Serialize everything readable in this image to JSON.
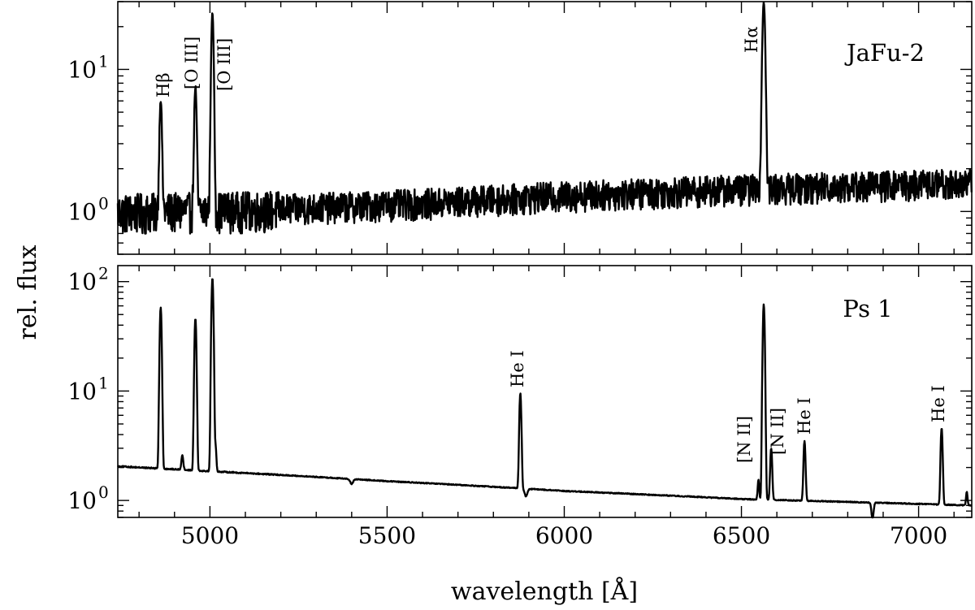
{
  "figure": {
    "xlabel": "wavelength [Å]",
    "ylabel": "rel. flux"
  },
  "chart_data": [
    {
      "type": "line",
      "title": "JaFu-2",
      "xlabel": "wavelength [Å]",
      "ylabel": "rel. flux",
      "xlim": [
        4740,
        7150
      ],
      "ylim": [
        0.5,
        30
      ],
      "yscale": "log",
      "xticks": [
        5000,
        5500,
        6000,
        6500,
        7000
      ],
      "yticks": [
        {
          "value": 1,
          "base": "10",
          "exp": "0"
        },
        {
          "value": 10,
          "base": "10",
          "exp": "1"
        }
      ],
      "series": [
        {
          "continuum": [
            [
              4740,
              1.0
            ],
            [
              5200,
              1.05
            ],
            [
              5600,
              1.15
            ],
            [
              6000,
              1.3
            ],
            [
              6500,
              1.45
            ],
            [
              7150,
              1.6
            ]
          ],
          "noise": 0.25,
          "lines": [
            {
              "x": 4861,
              "peak": 6.2,
              "width": 3
            },
            {
              "x": 4959,
              "peak": 7.5,
              "width": 3
            },
            {
              "x": 5007,
              "peak": 25,
              "width": 3
            },
            {
              "x": 6563,
              "peak": 30,
              "width": 3.5
            }
          ]
        }
      ],
      "annotations": [
        {
          "label": "Hβ",
          "x": 4861
        },
        {
          "label": "[O III]",
          "x": 4959
        },
        {
          "label": "[O III]",
          "x": 5007
        },
        {
          "label": "Hα",
          "x": 6563
        }
      ]
    },
    {
      "type": "line",
      "title": "Ps 1",
      "xlabel": "wavelength [Å]",
      "ylabel": "rel. flux",
      "xlim": [
        4740,
        7150
      ],
      "ylim": [
        0.7,
        140
      ],
      "yscale": "log",
      "xticks": [
        5000,
        5500,
        6000,
        6500,
        7000
      ],
      "xtick_labels": [
        "5000",
        "5500",
        "6000",
        "6500",
        "7000"
      ],
      "yticks": [
        {
          "value": 1,
          "base": "10",
          "exp": "0"
        },
        {
          "value": 10,
          "base": "10",
          "exp": "1"
        },
        {
          "value": 100,
          "base": "10",
          "exp": "2"
        }
      ],
      "series": [
        {
          "continuum": [
            [
              4740,
              2.05
            ],
            [
              5000,
              1.85
            ],
            [
              5500,
              1.5
            ],
            [
              6000,
              1.22
            ],
            [
              6500,
              1.03
            ],
            [
              7150,
              0.9
            ]
          ],
          "noise": 0.01,
          "lines": [
            {
              "x": 4861,
              "peak": 58,
              "width": 2.5
            },
            {
              "x": 4922,
              "peak": 2.6,
              "width": 2.5
            },
            {
              "x": 4959,
              "peak": 46,
              "width": 2.5
            },
            {
              "x": 5007,
              "peak": 108,
              "width": 2.5
            },
            {
              "x": 5016,
              "peak": 3.1,
              "width": 2
            },
            {
              "x": 5876,
              "peak": 9.6,
              "width": 2.5
            },
            {
              "x": 6548,
              "peak": 1.55,
              "width": 2
            },
            {
              "x": 6563,
              "peak": 62,
              "width": 2.5
            },
            {
              "x": 6584,
              "peak": 3.0,
              "width": 2.5
            },
            {
              "x": 6678,
              "peak": 3.5,
              "width": 2.5
            },
            {
              "x": 7065,
              "peak": 4.6,
              "width": 2.5
            },
            {
              "x": 7136,
              "peak": 1.2,
              "width": 2
            }
          ],
          "absorptions": [
            {
              "x": 5400,
              "depth": 0.1,
              "width": 4
            },
            {
              "x": 5892,
              "depth": 0.15,
              "width": 4
            },
            {
              "x": 6870,
              "depth": 0.3,
              "width": 3
            }
          ]
        }
      ],
      "annotations": [
        {
          "label": "He I",
          "x": 5876
        },
        {
          "label": "[N II]",
          "x": 6548
        },
        {
          "label": "[N II]",
          "x": 6584
        },
        {
          "label": "He I",
          "x": 6678
        },
        {
          "label": "He I",
          "x": 7065
        }
      ]
    }
  ]
}
